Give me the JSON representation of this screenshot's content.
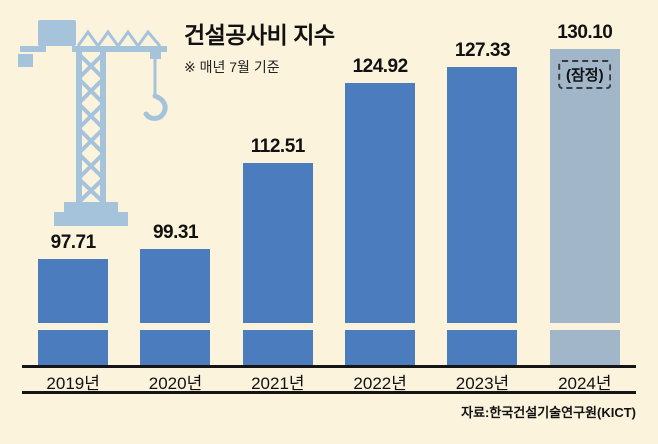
{
  "title": "건설공사비 지수",
  "subtitle": "※ 매년 7월 기준",
  "source": "자료:한국건설기술연구원(KICT)",
  "provisional_label": "(잠정)",
  "colors": {
    "background": "#FBF3DC",
    "bar": "#4B7DBE",
    "bar_provisional": "#A1B6C8",
    "crane": "#A6C3DC"
  },
  "chart_data": {
    "type": "bar",
    "title": "건설공사비 지수",
    "subtitle": "※ 매년 7월 기준",
    "categories": [
      "2019년",
      "2020년",
      "2021년",
      "2022년",
      "2023년",
      "2024년"
    ],
    "values": [
      97.71,
      99.31,
      112.51,
      124.92,
      127.33,
      130.1
    ],
    "value_labels": [
      "97.71",
      "99.31",
      "112.51",
      "124.92",
      "127.33",
      "130.10"
    ],
    "xlabel": "",
    "ylabel": "",
    "legend": "none",
    "grid": false,
    "axis_truncated": true,
    "notes": "2024 bar is provisional (잠정), drawn in lighter color",
    "provisional_index": 5,
    "source": "자료:한국건설기술연구원(KICT)"
  }
}
